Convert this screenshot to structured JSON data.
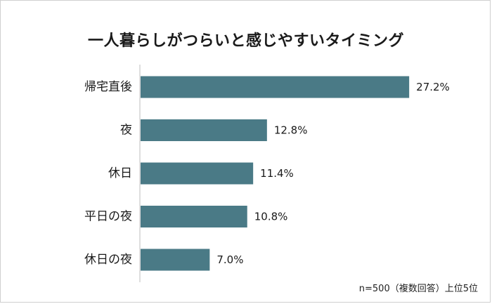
{
  "chart_data": {
    "type": "bar",
    "orientation": "horizontal",
    "title": "一人暮らしがつらいと感じやすいタイミング",
    "categories": [
      "帰宅直後",
      "夜",
      "休日",
      "平日の夜",
      "休日の夜"
    ],
    "values": [
      27.2,
      12.8,
      11.4,
      10.8,
      7.0
    ],
    "value_labels": [
      "27.2%",
      "12.8%",
      "11.4%",
      "10.8%",
      "7.0%"
    ],
    "unit": "%",
    "bar_color": "#4a7a86",
    "grid": false,
    "note": "n=500（複数回答）上位5位"
  }
}
